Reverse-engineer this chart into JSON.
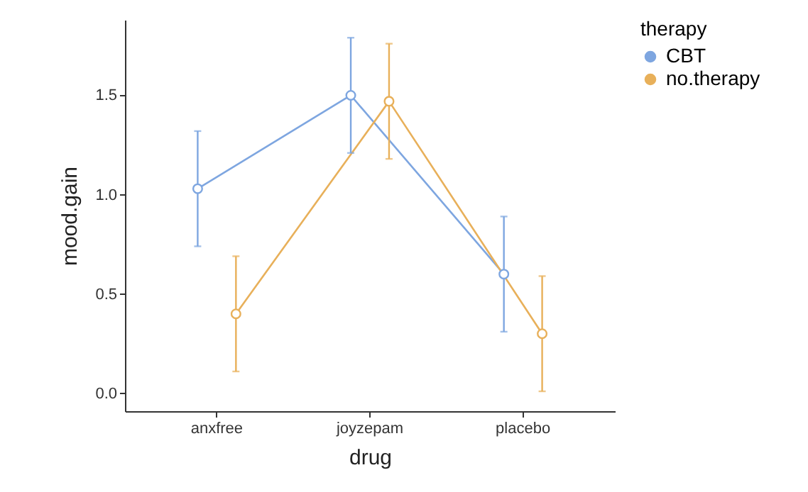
{
  "chart_data": {
    "type": "line",
    "xlabel": "drug",
    "ylabel": "mood.gain",
    "legend_title": "therapy",
    "legend": "right",
    "marker": "circle",
    "categories": [
      "anxfree",
      "joyzepam",
      "placebo"
    ],
    "ylim": [
      -0.09,
      1.88
    ],
    "yticks": [
      {
        "value": 0,
        "label": "0.0"
      },
      0.5,
      {
        "value": 1,
        "label": "1.0"
      },
      1.5
    ],
    "series": [
      {
        "name": "CBT",
        "color": "#7ea6e0",
        "values": [
          1.03,
          1.5,
          0.6
        ],
        "errors": [
          0.29,
          0.29,
          0.29
        ]
      },
      {
        "name": "no.therapy",
        "color": "#e8b05a",
        "values": [
          0.4,
          1.47,
          0.3
        ],
        "errors": [
          0.29,
          0.29,
          0.29
        ]
      }
    ]
  }
}
